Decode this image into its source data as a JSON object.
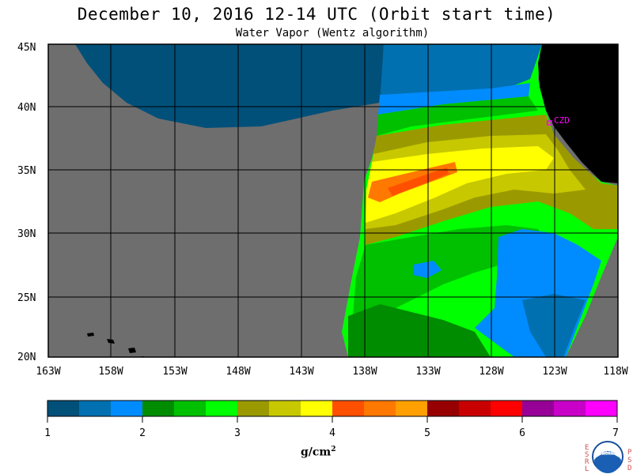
{
  "header": {
    "title": "December 10, 2016  12-14 UTC  (Orbit start time)",
    "subtitle": "Water Vapor (Wentz algorithm)"
  },
  "map": {
    "lat_labels": [
      "45N",
      "40N",
      "35N",
      "30N",
      "25N",
      "20N"
    ],
    "lon_labels": [
      "163W",
      "158W",
      "153W",
      "148W",
      "143W",
      "138W",
      "133W",
      "128W",
      "123W",
      "118W"
    ],
    "city_label": "CZD",
    "colors": {
      "no_data": "#6e6e6e",
      "land": "#000000",
      "grid": "#000000",
      "city": "#ff00ff"
    }
  },
  "colorbar": {
    "tick_labels": [
      "1",
      "2",
      "3",
      "4",
      "5",
      "6",
      "7"
    ],
    "units": "g/cm",
    "units_sup": "2",
    "colors": [
      "#00507a",
      "#0070b0",
      "#008cff",
      "#008c00",
      "#00c000",
      "#00ff00",
      "#9a9a00",
      "#c8c800",
      "#ffff00",
      "#ff5000",
      "#ff7800",
      "#ffa000",
      "#960000",
      "#c80000",
      "#ff0000",
      "#960096",
      "#c800c8",
      "#ff00ff"
    ]
  },
  "logo": {
    "left_letters": "ESRL",
    "right_letters": "PSD",
    "center_text": "NOAA"
  }
}
